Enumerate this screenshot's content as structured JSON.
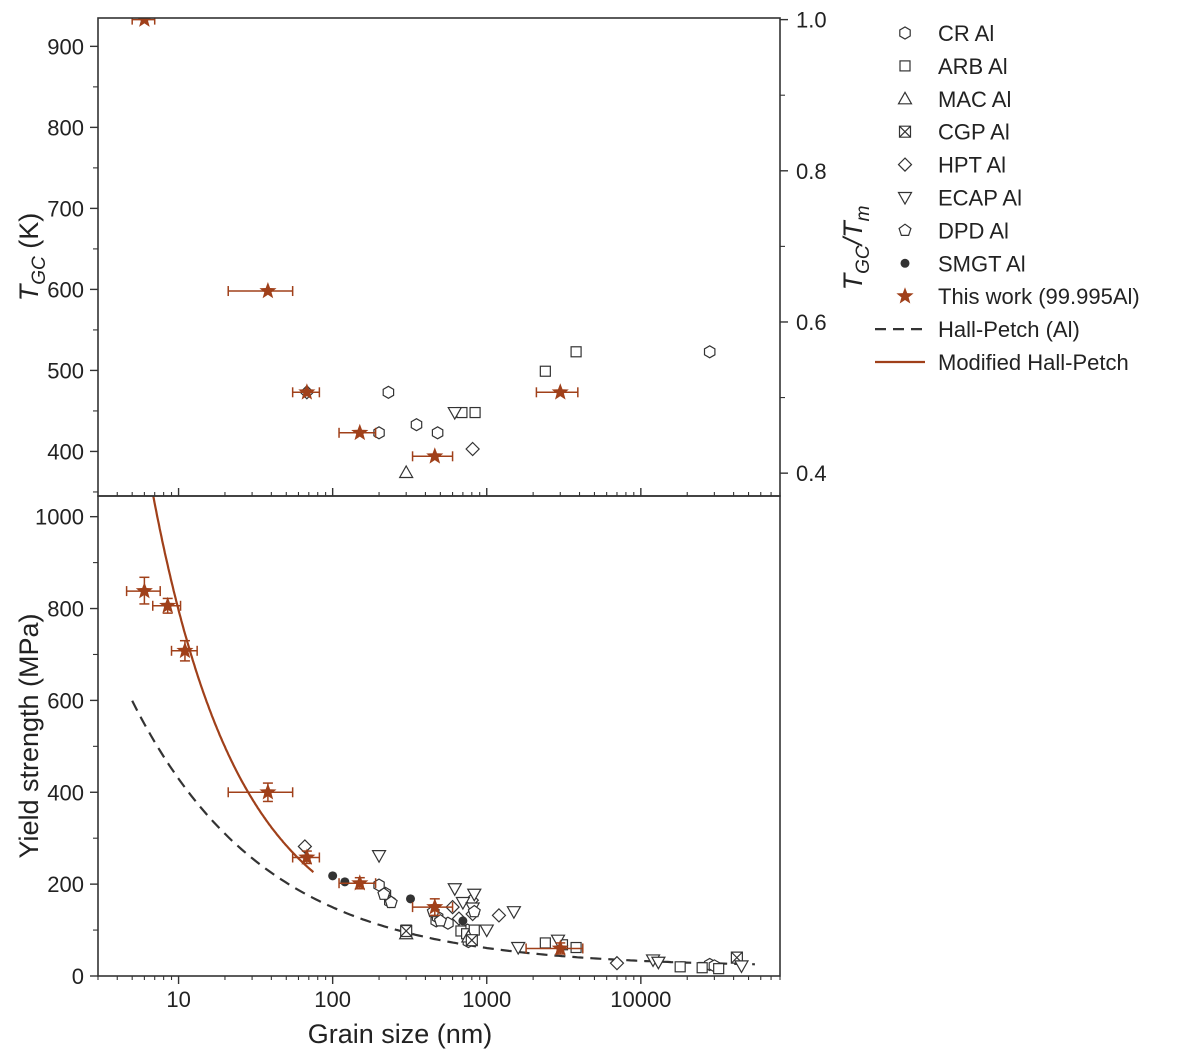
{
  "chart_data": {
    "type": "scatter",
    "x_scale": "log",
    "xlabel": "Grain size (nm)",
    "xlim": [
      3,
      80000
    ],
    "x_ticks": [
      {
        "value": 10,
        "label": "10"
      },
      {
        "value": 100,
        "label": "100"
      },
      {
        "value": 1000,
        "label": "1000"
      },
      {
        "value": 10000,
        "label": "10000"
      }
    ],
    "colors": {
      "series": "#333333",
      "this_work": "#a0401a",
      "frame": "#333333"
    },
    "legend": {
      "position": "right",
      "entries": [
        {
          "key": "cr",
          "label": "CR Al",
          "marker": "hexagon"
        },
        {
          "key": "arb",
          "label": "ARB Al",
          "marker": "square"
        },
        {
          "key": "mac",
          "label": "MAC Al",
          "marker": "triangle-up"
        },
        {
          "key": "cgp",
          "label": "CGP Al",
          "marker": "square-x"
        },
        {
          "key": "hpt",
          "label": "HPT Al",
          "marker": "diamond"
        },
        {
          "key": "ecap",
          "label": "ECAP Al",
          "marker": "triangle-down"
        },
        {
          "key": "dpd",
          "label": "DPD Al",
          "marker": "pentagon"
        },
        {
          "key": "smgt",
          "label": "SMGT Al",
          "marker": "dot"
        },
        {
          "key": "this",
          "label": "This work (99.995Al)",
          "marker": "star"
        },
        {
          "key": "hp",
          "label": "Hall-Petch (Al)",
          "marker": "dash-line"
        },
        {
          "key": "mhp",
          "label": "Modified Hall-Petch",
          "marker": "solid-line"
        }
      ]
    },
    "panels": [
      {
        "id": "top",
        "ylabel_main": "T",
        "ylabel_sub": "GC",
        "ylabel_unit": " (K)",
        "ylim": [
          345,
          935
        ],
        "y_ticks": [
          {
            "value": 400,
            "label": "400"
          },
          {
            "value": 500,
            "label": "500"
          },
          {
            "value": 600,
            "label": "600"
          },
          {
            "value": 700,
            "label": "700"
          },
          {
            "value": 800,
            "label": "800"
          },
          {
            "value": 900,
            "label": "900"
          }
        ],
        "y2label_main": "T",
        "y2label_sub1": "GC",
        "y2label_mid": "/T",
        "y2label_sub2": "m",
        "y2_ticks": [
          {
            "value": 0.4,
            "label": "0.4"
          },
          {
            "value": 0.6,
            "label": "0.6"
          },
          {
            "value": 0.8,
            "label": "0.8"
          },
          {
            "value": 1.0,
            "label": "1.0"
          }
        ],
        "y2_per_y": 933,
        "series": [
          {
            "key": "cr",
            "points": [
              [
                230,
                473
              ],
              [
                350,
                433
              ],
              [
                480,
                423
              ],
              [
                200,
                423
              ],
              [
                28000,
                523
              ]
            ]
          },
          {
            "key": "arb",
            "points": [
              [
                2400,
                499
              ],
              [
                3800,
                523
              ],
              [
                840,
                448
              ],
              [
                690,
                448
              ]
            ]
          },
          {
            "key": "mac",
            "points": [
              [
                300,
                374
              ]
            ]
          },
          {
            "key": "hpt",
            "points": [
              [
                68,
                473
              ],
              [
                810,
                403
              ]
            ]
          },
          {
            "key": "ecap",
            "points": [
              [
                620,
                448
              ]
            ]
          }
        ],
        "this_work": [
          {
            "x": 6,
            "y": 933,
            "xerr": [
              5,
              7
            ]
          },
          {
            "x": 38,
            "y": 598,
            "xerr": [
              21,
              55
            ]
          },
          {
            "x": 68,
            "y": 473,
            "xerr": [
              55,
              82
            ]
          },
          {
            "x": 150,
            "y": 423,
            "xerr": [
              110,
              190
            ]
          },
          {
            "x": 460,
            "y": 394,
            "xerr": [
              330,
              600
            ]
          },
          {
            "x": 3000,
            "y": 473,
            "xerr": [
              2100,
              3900
            ]
          }
        ]
      },
      {
        "id": "bottom",
        "ylabel": "Yield strength (MPa)",
        "ylim": [
          0,
          1045
        ],
        "y_ticks": [
          {
            "value": 0,
            "label": "0"
          },
          {
            "value": 200,
            "label": "200"
          },
          {
            "value": 400,
            "label": "400"
          },
          {
            "value": 600,
            "label": "600"
          },
          {
            "value": 800,
            "label": "800"
          },
          {
            "value": 1000,
            "label": "1000"
          }
        ],
        "series": [
          {
            "key": "cr",
            "points": [
              [
                200,
                198
              ],
              [
                220,
                180
              ],
              [
                235,
                162
              ],
              [
                470,
                120
              ],
              [
                480,
                128
              ],
              [
                560,
                115
              ],
              [
                750,
                100
              ],
              [
                28000,
                25
              ],
              [
                30000,
                22
              ],
              [
                760,
                75
              ]
            ]
          },
          {
            "key": "arb",
            "points": [
              [
                300,
                100
              ],
              [
                680,
                98
              ],
              [
                740,
                92
              ],
              [
                830,
                100
              ],
              [
                2400,
                72
              ],
              [
                3100,
                68
              ],
              [
                3800,
                62
              ],
              [
                18000,
                20
              ],
              [
                25000,
                18
              ],
              [
                32000,
                16
              ]
            ]
          },
          {
            "key": "mac",
            "points": [
              [
                300,
                92
              ],
              [
                760,
                85
              ]
            ]
          },
          {
            "key": "cgp",
            "points": [
              [
                300,
                98
              ],
              [
                800,
                78
              ],
              [
                42000,
                40
              ]
            ]
          },
          {
            "key": "hpt",
            "points": [
              [
                66,
                282
              ],
              [
                660,
                125
              ],
              [
                810,
                135
              ],
              [
                1200,
                132
              ],
              [
                7000,
                28
              ],
              [
                800,
                165
              ],
              [
                600,
                150
              ]
            ]
          },
          {
            "key": "ecap",
            "points": [
              [
                200,
                262
              ],
              [
                830,
                178
              ],
              [
                620,
                190
              ],
              [
                700,
                160
              ],
              [
                810,
                148
              ],
              [
                1000,
                100
              ],
              [
                1600,
                62
              ],
              [
                1500,
                140
              ],
              [
                2900,
                78
              ],
              [
                12000,
                35
              ],
              [
                13000,
                30
              ],
              [
                45000,
                22
              ]
            ]
          },
          {
            "key": "dpd",
            "points": [
              [
                215,
                178
              ],
              [
                240,
                160
              ],
              [
                450,
                140
              ],
              [
                500,
                120
              ],
              [
                830,
                140
              ]
            ]
          },
          {
            "key": "smgt",
            "points": [
              [
                100,
                218
              ],
              [
                120,
                205
              ],
              [
                320,
                168
              ],
              [
                700,
                120
              ]
            ]
          }
        ],
        "this_work": [
          {
            "x": 6,
            "y": 838,
            "xerr": [
              4.6,
              7.6
            ],
            "yerr": [
              810,
              868
            ]
          },
          {
            "x": 8.5,
            "y": 806,
            "xerr": [
              6.8,
              10.3
            ],
            "yerr": [
              790,
              822
            ]
          },
          {
            "x": 11,
            "y": 708,
            "xerr": [
              9.0,
              13.2
            ],
            "yerr": [
              686,
              730
            ]
          },
          {
            "x": 38,
            "y": 400,
            "xerr": [
              21,
              55
            ],
            "yerr": [
              380,
              420
            ]
          },
          {
            "x": 68,
            "y": 258,
            "xerr": [
              55,
              82
            ],
            "yerr": [
              245,
              272
            ]
          },
          {
            "x": 150,
            "y": 202,
            "xerr": [
              110,
              190
            ],
            "yerr": [
              190,
              214
            ]
          },
          {
            "x": 460,
            "y": 150,
            "xerr": [
              330,
              600
            ],
            "yerr": [
              132,
              168
            ]
          },
          {
            "x": 3000,
            "y": 60,
            "xerr": [
              1800,
              4200
            ],
            "yerr": [
              48,
              72
            ]
          }
        ],
        "curves": [
          {
            "key": "hp",
            "model": "sigma0 + k / sqrt(d)",
            "sigma0": 20,
            "k": 1295,
            "x_range": [
              5,
              55000
            ]
          },
          {
            "key": "mhp",
            "model": "sigma0 + k / sqrt(d) + c / d",
            "sigma0": 25,
            "k": 1340,
            "c": 3480,
            "x_range": [
              5.6,
              75
            ]
          }
        ]
      }
    ]
  }
}
